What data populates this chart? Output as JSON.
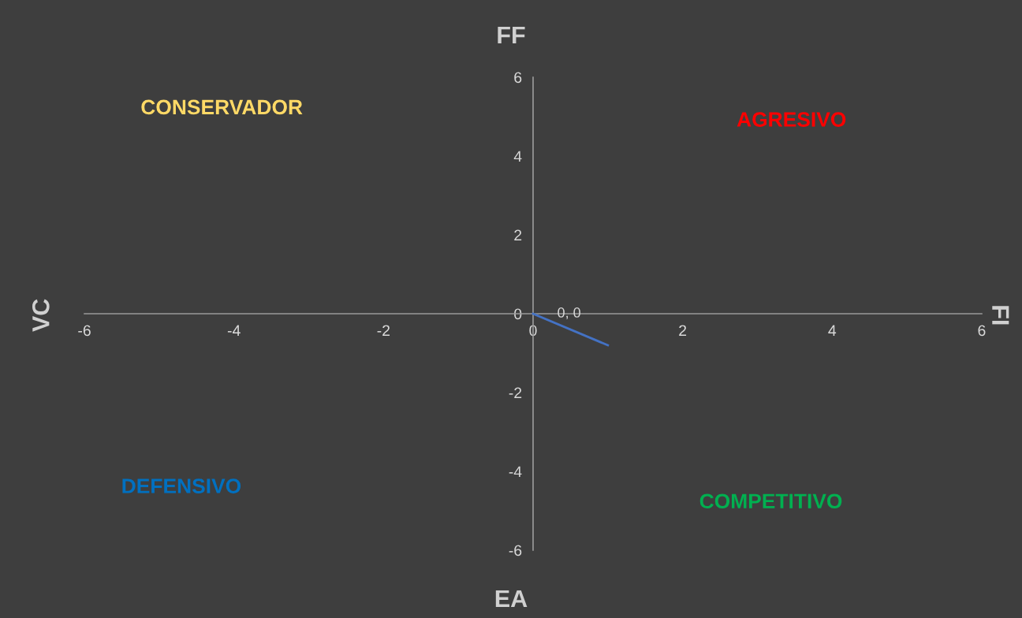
{
  "chart_data": {
    "type": "line",
    "x": [
      0,
      1
    ],
    "series": [
      {
        "color": "#4472c4",
        "values": [
          0,
          -0.8
        ],
        "value_labels": [
          "0, 0",
          null
        ]
      }
    ],
    "xlim": [
      -6,
      6
    ],
    "ylim": [
      -6,
      6
    ],
    "xticks": [
      -6,
      -4,
      -2,
      0,
      2,
      4,
      6
    ],
    "yticks": [
      -6,
      -4,
      -2,
      0,
      2,
      4,
      6
    ],
    "grid": false,
    "legend": false,
    "marker": "none",
    "line_style": "solid",
    "annotations": [
      "FF",
      "EA",
      "VC",
      "FI",
      "CONSERVADOR",
      "AGRESIVO",
      "DEFENSIVO",
      "COMPETITIVO"
    ]
  }
}
